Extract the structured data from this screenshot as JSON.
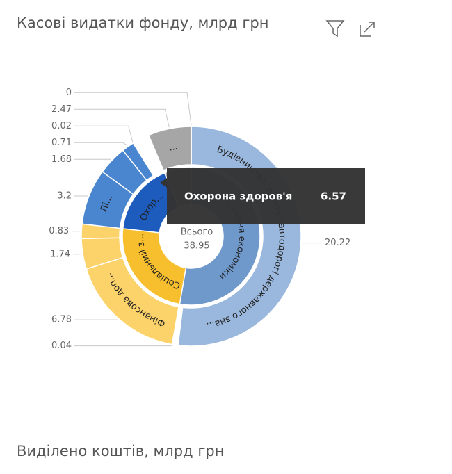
{
  "chart_data": {
    "type": "sunburst",
    "title": "Касові видатки фонду, млрд грн",
    "center_label": "Всього",
    "total": 38.95,
    "items": [
      {
        "label": "...вання економіки",
        "value": 20.52,
        "color": "#6f98cb",
        "outer_color": "#9ab8dd",
        "children": [
          {
            "value": 20.22,
            "label": "Будівництво, ремонт автодорогі державного зна..."
          }
        ]
      },
      {
        "label": "Соціальний з...",
        "value": 9.39,
        "color": "#f7be2d",
        "outer_color": "#fcd26a",
        "children": [
          {
            "value": 0.04
          },
          {
            "value": 6.78,
            "label": "Фінансова доп..."
          },
          {
            "value": 1.74
          },
          {
            "value": 0.83
          }
        ]
      },
      {
        "name": "Охорона здоров'я",
        "label": "Охор...",
        "value": 6.57,
        "color": "#1d5cbd",
        "outer_color": "#4a86d0",
        "children": [
          {
            "value": 3.2,
            "label": "Лі..."
          },
          {
            "value": 1.68
          },
          {
            "value": 0.71
          },
          {
            "value": 0.02
          }
        ]
      },
      {
        "value": 2.47,
        "color": "#a6a6a6",
        "outer_color": "#a6a6a6",
        "children": [
          {
            "value": 2.47,
            "label": "..."
          },
          {
            "value": 0.0,
            "color": "#8f9fd6"
          }
        ]
      }
    ],
    "footer_title": "Виділено коштів, млрд грн"
  }
}
